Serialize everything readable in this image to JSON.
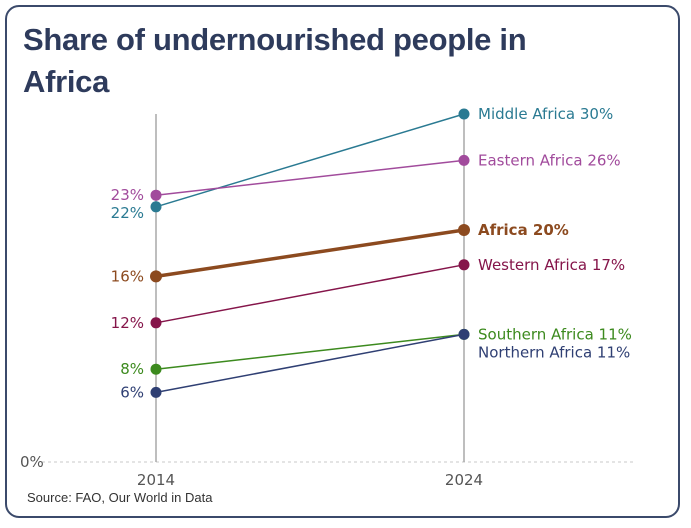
{
  "title": "Share of undernourished people in Africa",
  "source": "Source: FAO, Our World in Data",
  "chart_data": {
    "type": "line",
    "subtype": "slope",
    "x": [
      2014,
      2024
    ],
    "x_tick_labels": [
      "2014",
      "2024"
    ],
    "ylim": [
      0,
      30
    ],
    "y_tick_labels": [
      "0%"
    ],
    "grid": true,
    "series": [
      {
        "name": "Middle Africa",
        "values": [
          22,
          30
        ],
        "color": "#2a7a92",
        "start_label": "22%",
        "end_label": "Middle Africa 30%",
        "bold": false
      },
      {
        "name": "Eastern Africa",
        "values": [
          23,
          26
        ],
        "color": "#a14b9c",
        "start_label": "23%",
        "end_label": "Eastern Africa 26%",
        "bold": false
      },
      {
        "name": "Africa",
        "values": [
          16,
          20
        ],
        "color": "#8c4a1f",
        "start_label": "16%",
        "end_label": "Africa 20%",
        "bold": true
      },
      {
        "name": "Western Africa",
        "values": [
          12,
          17
        ],
        "color": "#85154a",
        "start_label": "12%",
        "end_label": "Western Africa 17%",
        "bold": false
      },
      {
        "name": "Southern Africa",
        "values": [
          8,
          11
        ],
        "color": "#3c8a1e",
        "start_label": "8%",
        "end_label": "Southern Africa 11%",
        "bold": false
      },
      {
        "name": "Northern Africa",
        "values": [
          6,
          11
        ],
        "color": "#2f3f73",
        "start_label": "6%",
        "end_label": "Northern Africa 11%",
        "bold": false
      }
    ]
  }
}
